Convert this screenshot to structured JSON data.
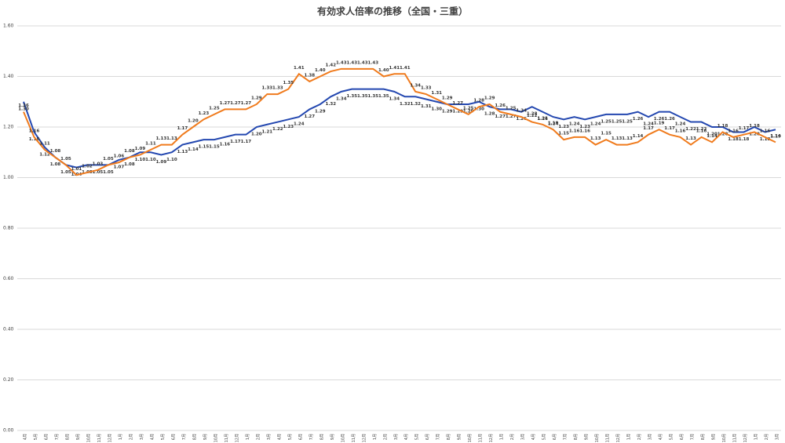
{
  "chart_data": {
    "type": "line",
    "title": "有効求人倍率の推移（全国・三重）",
    "categories": [
      "4月",
      "5月",
      "6月",
      "7月",
      "8月",
      "9月",
      "10月",
      "11月",
      "12月",
      "1月",
      "2月",
      "3月",
      "4月",
      "5月",
      "6月",
      "7月",
      "8月",
      "9月",
      "10月",
      "11月",
      "12月",
      "1月",
      "2月",
      "3月",
      "4月",
      "5月",
      "6月",
      "7月",
      "8月",
      "9月",
      "10月",
      "11月",
      "12月",
      "1月",
      "2月",
      "3月",
      "4月",
      "5月",
      "6月",
      "7月",
      "8月",
      "9月",
      "10月",
      "11月",
      "12月",
      "1月",
      "2月",
      "3月",
      "4月",
      "5月",
      "6月",
      "7月",
      "8月",
      "9月",
      "10月",
      "11月",
      "12月",
      "1月",
      "2月",
      "3月",
      "4月",
      "5月",
      "6月",
      "7月",
      "8月",
      "9月",
      "10月",
      "11月",
      "12月",
      "1月",
      "2月",
      "3月"
    ],
    "series": [
      {
        "color": "#2448b0",
        "values": [
          1.3,
          1.18,
          1.12,
          1.08,
          1.05,
          1.04,
          1.05,
          1.05,
          1.05,
          1.07,
          1.08,
          1.1,
          1.1,
          1.09,
          1.1,
          1.13,
          1.14,
          1.15,
          1.15,
          1.16,
          1.17,
          1.17,
          1.2,
          1.21,
          1.22,
          1.23,
          1.24,
          1.27,
          1.29,
          1.32,
          1.34,
          1.35,
          1.35,
          1.35,
          1.35,
          1.34,
          1.32,
          1.32,
          1.31,
          1.3,
          1.29,
          1.29,
          1.29,
          1.3,
          1.28,
          1.27,
          1.27,
          1.26,
          1.28,
          1.26,
          1.24,
          1.23,
          1.24,
          1.23,
          1.24,
          1.25,
          1.25,
          1.25,
          1.26,
          1.24,
          1.26,
          1.26,
          1.24,
          1.22,
          1.22,
          1.2,
          1.2,
          1.18,
          1.18,
          1.2,
          1.18,
          1.19
        ],
        "value_labels": [
          "1.30",
          "1.18",
          "1.12",
          "1.08",
          "1.05",
          "1.04",
          "1.05",
          "1.05",
          "1.05",
          "1.07",
          "1.08",
          "1.10",
          "1.10",
          "1.09",
          "1.10",
          "1.13",
          "1.14",
          "1.15",
          "1.15",
          "1.16",
          "1.17",
          "1.17",
          "1.20",
          "1.21",
          "1.22",
          "1.23",
          "1.24",
          "1.27",
          "1.29",
          "1.32",
          "1.34",
          "1.35",
          "1.35",
          "1.35",
          "1.35",
          "1.34",
          "1.32",
          "1.32",
          "1.31",
          "1.30",
          "1.29",
          "1.29",
          "1.29",
          "1.30",
          "1.28",
          "1.27",
          "1.27",
          "1.26",
          "1.28",
          "1.26",
          "1.24",
          "1.23",
          "1.24",
          "1.23",
          "1.24",
          "1.25",
          "1.25",
          "1.25",
          "1.26",
          "1.24",
          "1.26",
          "1.26",
          "1.24",
          "1.22",
          "1.22",
          "1.20",
          "1.20",
          "1.18",
          "1.18",
          "1.20",
          "1.18",
          "1.19"
        ]
      },
      {
        "color": "#f07b1d",
        "values": [
          1.26,
          1.16,
          1.11,
          1.08,
          1.05,
          1.01,
          1.02,
          1.03,
          1.05,
          1.06,
          1.08,
          1.09,
          1.11,
          1.13,
          1.13,
          1.17,
          1.2,
          1.23,
          1.25,
          1.27,
          1.27,
          1.27,
          1.29,
          1.33,
          1.33,
          1.35,
          1.41,
          1.38,
          1.4,
          1.42,
          1.43,
          1.43,
          1.43,
          1.43,
          1.4,
          1.41,
          1.41,
          1.34,
          1.33,
          1.31,
          1.29,
          1.27,
          1.25,
          1.28,
          1.29,
          1.26,
          1.25,
          1.24,
          1.22,
          1.21,
          1.19,
          1.15,
          1.16,
          1.16,
          1.13,
          1.15,
          1.13,
          1.13,
          1.14,
          1.17,
          1.19,
          1.17,
          1.16,
          1.13,
          1.16,
          1.14,
          1.18,
          1.16,
          1.17,
          1.18,
          1.16,
          1.14
        ],
        "value_labels": [
          "1.26",
          "1.16",
          "1.11",
          "1.08",
          "1.05",
          "1.01",
          "1.02",
          "1.03",
          "1.05",
          "1.06",
          "1.08",
          "1.09",
          "1.11",
          "1.13",
          "1.13",
          "1.17",
          "1.20",
          "1.23",
          "1.25",
          "1.27",
          "1.27",
          "1.27",
          "1.29",
          "1.33",
          "1.33",
          "1.35",
          "1.41",
          "1.38",
          "1.40",
          "1.42",
          "1.43",
          "1.43",
          "1.43",
          "1.43",
          "1.40",
          "1.41",
          "1.41",
          "1.34",
          "1.33",
          "1.31",
          "1.29",
          "1.27",
          "1.25",
          "1.28",
          "1.29",
          "1.26",
          "1.25",
          "1.24",
          "1.22",
          "1.21",
          "1.19",
          "1.15",
          "1.16",
          "1.16",
          "1.13",
          "1.15",
          "1.13",
          "1.13",
          "1.14",
          "1.17",
          "1.19",
          "1.17",
          "1.16",
          "1.13",
          "1.16",
          "1.14",
          "1.18",
          "1.16",
          "1.17",
          "1.18",
          "1.16",
          "1.14"
        ]
      }
    ],
    "ylim": [
      0,
      1.6
    ],
    "yticks": [
      {
        "value": 0,
        "label": "0.00"
      },
      {
        "value": 0.2,
        "label": "0.20"
      },
      {
        "value": 0.4,
        "label": "0.40"
      },
      {
        "value": 0.6,
        "label": "0.60"
      },
      {
        "value": 0.8,
        "label": "0.80"
      },
      {
        "value": 1,
        "label": "1.00"
      },
      {
        "value": 1.2,
        "label": "1.20"
      },
      {
        "value": 1.4,
        "label": "1.40"
      },
      {
        "value": 1.6,
        "label": "1.60"
      }
    ],
    "grid": true
  }
}
